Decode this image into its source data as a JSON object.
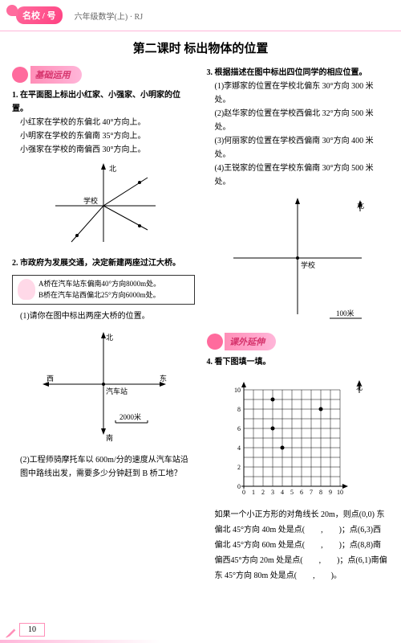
{
  "header": {
    "logo": "名校 / 号",
    "breadcrumb": "六年级数学(上) · RJ"
  },
  "title": "第二课时  标出物体的位置",
  "sections": {
    "basic": "基础运用",
    "extend": "课外延伸"
  },
  "q1": {
    "stem": "1. 在平面图上标出小红家、小强家、小明家的位置。",
    "lines": [
      "小红家在学校的东偏北 40°方向上。",
      "小明家在学校的东偏南 35°方向上。",
      "小强家在学校的南偏西 30°方向上。"
    ],
    "label_north": "北",
    "label_school": "学校"
  },
  "q2": {
    "stem": "2. 市政府为发展交通，决定新建两座过江大桥。",
    "bridge_a": "A桥在汽车站东偏南40°方向8000m处。",
    "bridge_b": "B桥在汽车站西偏北25°方向6000m处。",
    "sub1": "(1)请你在图中标出两座大桥的位置。",
    "label_n": "北",
    "label_s": "南",
    "label_e": "东",
    "label_w": "西",
    "label_station": "汽车站",
    "scale": "2000米",
    "sub2": "(2)工程师骑摩托车以 600m/分的速度从汽车站沿图中路线出发，需要多少分钟赶到 B 桥工地？"
  },
  "q3": {
    "stem": "3. 根据描述在图中标出四位同学的相应位置。",
    "items": [
      "(1)李娜家的位置在学校北偏东 30°方向 300 米处。",
      "(2)赵华家的位置在学校西偏北 32°方向 500 米处。",
      "(3)何丽家的位置在学校西偏南 30°方向 400 米处。",
      "(4)王锐家的位置在学校东偏南 30°方向 500 米处。"
    ],
    "label_north": "北",
    "label_school": "学校",
    "scale": "100米"
  },
  "q4": {
    "stem": "4. 看下图填一填。",
    "label_north": "北",
    "grid": {
      "max": 10,
      "points": [
        [
          4,
          4
        ],
        [
          3,
          6
        ],
        [
          8,
          8
        ],
        [
          3,
          9
        ]
      ]
    },
    "text": "如果一个小正方形的对角线长 20m，则点(0,0) 东偏北 45°方向 40m 处是点(　　,　　)；点(6,3)西偏北 45°方向 60m 处是点(　　,　　)；点(8,8)南偏西45°方向 20m 处是点(　　,　　)；点(6,1)南偏东 45°方向 80m 处是点(　　,　　)。"
  },
  "page_num": "10",
  "colors": {
    "pink": "#ff6b9d",
    "pinklight": "#ffb6d9"
  }
}
